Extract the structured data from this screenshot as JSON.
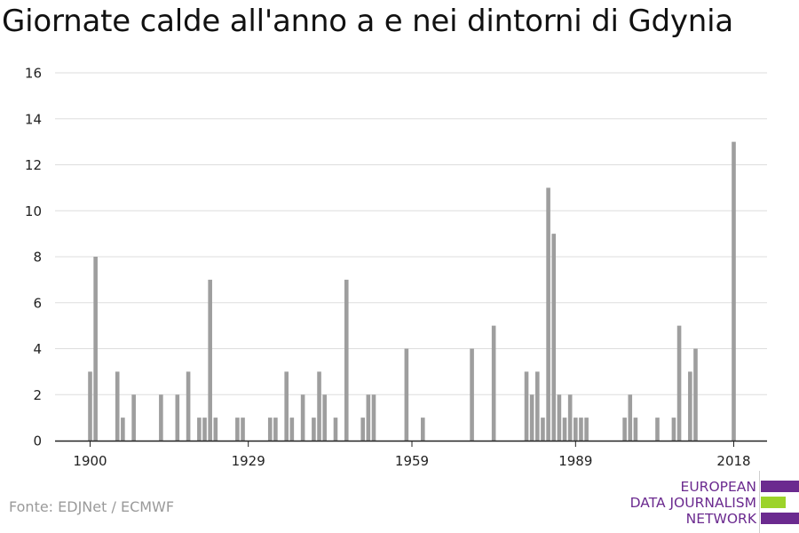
{
  "title": "Giornate calde all'anno a e nei dintorni di Gdynia",
  "source": "Fonte: EDJNet / ECMWF",
  "logo": {
    "lines": [
      "EUROPEAN",
      "DATA JOURNALISM",
      "NETWORK"
    ],
    "colors": {
      "text": "#6b2a8f",
      "bar_top": "#6b2a8f",
      "bar_mid": "#9cd32a",
      "bar_bottom": "#6b2a8f"
    }
  },
  "colors": {
    "bar": "#9e9e9e",
    "grid": "#dddddd",
    "axis": "#222222",
    "text": "#222222"
  },
  "chart_data": {
    "type": "bar",
    "title": "Giornate calde all'anno a e nei dintorni di Gdynia",
    "xlabel": "",
    "ylabel": "",
    "ylim": [
      0,
      16
    ],
    "xlim": [
      1900,
      2018
    ],
    "y_ticks": [
      "0",
      "2",
      "4",
      "6",
      "8",
      "10",
      "12",
      "14",
      "16"
    ],
    "x_ticks": [
      "1900",
      "1929",
      "1959",
      "1989",
      "2018"
    ],
    "grid": true,
    "x": [
      1900,
      1901,
      1902,
      1903,
      1904,
      1905,
      1906,
      1907,
      1908,
      1909,
      1910,
      1911,
      1912,
      1913,
      1914,
      1915,
      1916,
      1917,
      1918,
      1919,
      1920,
      1921,
      1922,
      1923,
      1924,
      1925,
      1926,
      1927,
      1928,
      1929,
      1930,
      1931,
      1932,
      1933,
      1934,
      1935,
      1936,
      1937,
      1938,
      1939,
      1940,
      1941,
      1942,
      1943,
      1944,
      1945,
      1946,
      1947,
      1948,
      1949,
      1950,
      1951,
      1952,
      1953,
      1954,
      1955,
      1956,
      1957,
      1958,
      1959,
      1960,
      1961,
      1962,
      1963,
      1964,
      1965,
      1966,
      1967,
      1968,
      1969,
      1970,
      1971,
      1972,
      1973,
      1974,
      1975,
      1976,
      1977,
      1978,
      1979,
      1980,
      1981,
      1982,
      1983,
      1984,
      1985,
      1986,
      1987,
      1988,
      1989,
      1990,
      1991,
      1992,
      1993,
      1994,
      1995,
      1996,
      1997,
      1998,
      1999,
      2000,
      2001,
      2002,
      2003,
      2004,
      2005,
      2006,
      2007,
      2008,
      2009,
      2010,
      2011,
      2012,
      2013,
      2014,
      2015,
      2016,
      2017,
      2018
    ],
    "values": [
      3,
      8,
      0,
      0,
      0,
      3,
      1,
      0,
      2,
      0,
      0,
      0,
      0,
      2,
      0,
      0,
      2,
      0,
      3,
      0,
      1,
      1,
      7,
      1,
      0,
      0,
      0,
      1,
      1,
      0,
      0,
      0,
      0,
      1,
      1,
      0,
      3,
      1,
      0,
      2,
      0,
      1,
      3,
      2,
      0,
      1,
      0,
      7,
      0,
      0,
      1,
      2,
      2,
      0,
      0,
      0,
      0,
      0,
      4,
      0,
      0,
      1,
      0,
      0,
      0,
      0,
      0,
      0,
      0,
      0,
      4,
      0,
      0,
      0,
      5,
      0,
      0,
      0,
      0,
      0,
      3,
      2,
      3,
      1,
      11,
      9,
      2,
      1,
      2,
      1,
      1,
      1,
      0,
      0,
      0,
      0,
      0,
      0,
      1,
      2,
      1,
      0,
      0,
      0,
      1,
      0,
      0,
      1,
      5,
      0,
      3,
      4,
      0,
      0,
      0,
      0,
      0,
      0,
      13
    ]
  }
}
